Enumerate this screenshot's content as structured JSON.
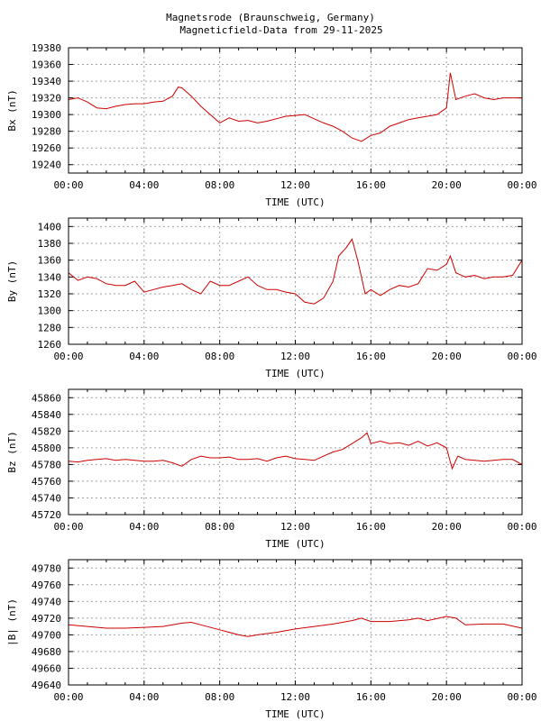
{
  "title_line1": "Magnetsrode (Braunschweig, Germany)",
  "title_line2": "Magneticfield-Data from 29-11-2025",
  "line_color": "#cc0000",
  "chart_data": [
    {
      "type": "line",
      "ylabel": "Bx (nT)",
      "xlabel": "TIME (UTC)",
      "xlim": [
        0,
        24
      ],
      "x_ticks": [
        "00:00",
        "04:00",
        "08:00",
        "12:00",
        "16:00",
        "20:00",
        "00:00"
      ],
      "ylim": [
        19230,
        19380
      ],
      "y_ticks": [
        19240,
        19260,
        19280,
        19300,
        19320,
        19340,
        19360,
        19380
      ],
      "grid": true,
      "x": [
        0,
        0.5,
        1,
        1.5,
        2,
        2.5,
        3,
        3.5,
        4,
        4.5,
        5,
        5.5,
        5.8,
        6,
        6.5,
        7,
        7.5,
        8,
        8.5,
        9,
        9.5,
        10,
        10.5,
        11,
        11.5,
        12,
        12.5,
        13,
        13.5,
        14,
        14.5,
        15,
        15.5,
        16,
        16.5,
        17,
        17.5,
        18,
        18.5,
        19,
        19.5,
        20,
        20.2,
        20.5,
        21,
        21.5,
        22,
        22.5,
        23,
        23.5,
        24
      ],
      "y": [
        19318,
        19320,
        19315,
        19308,
        19307,
        19310,
        19312,
        19313,
        19313,
        19315,
        19316,
        19322,
        19333,
        19332,
        19322,
        19310,
        19300,
        19290,
        19296,
        19292,
        19293,
        19290,
        19292,
        19295,
        19298,
        19299,
        19300,
        19295,
        19290,
        19286,
        19280,
        19272,
        19268,
        19275,
        19278,
        19286,
        19290,
        19294,
        19296,
        19298,
        19300,
        19308,
        19350,
        19318,
        19322,
        19325,
        19320,
        19318,
        19320,
        19320,
        19320
      ]
    },
    {
      "type": "line",
      "ylabel": "By (nT)",
      "xlabel": "TIME (UTC)",
      "xlim": [
        0,
        24
      ],
      "x_ticks": [
        "00:00",
        "04:00",
        "08:00",
        "12:00",
        "16:00",
        "20:00",
        "00:00"
      ],
      "ylim": [
        1260,
        1410
      ],
      "y_ticks": [
        1260,
        1280,
        1300,
        1320,
        1340,
        1360,
        1380,
        1400
      ],
      "grid": true,
      "x": [
        0,
        0.5,
        1,
        1.5,
        2,
        2.5,
        3,
        3.5,
        4,
        4.5,
        5,
        5.5,
        6,
        6.5,
        7,
        7.5,
        8,
        8.5,
        9,
        9.5,
        10,
        10.5,
        11,
        11.5,
        12,
        12.5,
        13,
        13.5,
        14,
        14.3,
        14.7,
        15,
        15.3,
        15.7,
        16,
        16.5,
        17,
        17.5,
        18,
        18.5,
        19,
        19.5,
        20,
        20.2,
        20.5,
        21,
        21.5,
        22,
        22.5,
        23,
        23.5,
        24
      ],
      "y": [
        1345,
        1336,
        1340,
        1338,
        1332,
        1330,
        1330,
        1335,
        1322,
        1325,
        1328,
        1330,
        1332,
        1325,
        1320,
        1335,
        1330,
        1330,
        1335,
        1340,
        1330,
        1325,
        1325,
        1322,
        1320,
        1310,
        1308,
        1315,
        1335,
        1365,
        1375,
        1385,
        1360,
        1320,
        1325,
        1318,
        1325,
        1330,
        1328,
        1332,
        1350,
        1348,
        1355,
        1365,
        1345,
        1340,
        1342,
        1338,
        1340,
        1340,
        1342,
        1360
      ]
    },
    {
      "type": "line",
      "ylabel": "Bz (nT)",
      "xlabel": "TIME (UTC)",
      "xlim": [
        0,
        24
      ],
      "x_ticks": [
        "00:00",
        "04:00",
        "08:00",
        "12:00",
        "16:00",
        "20:00",
        "00:00"
      ],
      "ylim": [
        45720,
        45870
      ],
      "y_ticks": [
        45720,
        45740,
        45760,
        45780,
        45800,
        45820,
        45840,
        45860
      ],
      "grid": true,
      "x": [
        0,
        0.5,
        1,
        1.5,
        2,
        2.5,
        3,
        3.5,
        4,
        4.5,
        5,
        5.5,
        6,
        6.5,
        7,
        7.5,
        8,
        8.5,
        9,
        9.5,
        10,
        10.5,
        11,
        11.5,
        12,
        12.5,
        13,
        13.5,
        14,
        14.5,
        15,
        15.5,
        15.8,
        16,
        16.5,
        17,
        17.5,
        18,
        18.5,
        19,
        19.5,
        20,
        20.3,
        20.6,
        21,
        21.5,
        22,
        22.5,
        23,
        23.5,
        24
      ],
      "y": [
        45784,
        45783,
        45785,
        45786,
        45787,
        45785,
        45786,
        45785,
        45784,
        45784,
        45785,
        45782,
        45778,
        45786,
        45790,
        45788,
        45788,
        45789,
        45786,
        45786,
        45787,
        45784,
        45788,
        45790,
        45787,
        45786,
        45785,
        45790,
        45795,
        45798,
        45805,
        45812,
        45818,
        45805,
        45808,
        45805,
        45806,
        45803,
        45808,
        45802,
        45806,
        45800,
        45775,
        45790,
        45786,
        45785,
        45784,
        45785,
        45786,
        45786,
        45780
      ]
    },
    {
      "type": "line",
      "ylabel": "|B| (nT)",
      "xlabel": "TIME (UTC)",
      "xlim": [
        0,
        24
      ],
      "x_ticks": [
        "00:00",
        "04:00",
        "08:00",
        "12:00",
        "16:00",
        "20:00",
        "00:00"
      ],
      "ylim": [
        49640,
        49790
      ],
      "y_ticks": [
        49640,
        49660,
        49680,
        49700,
        49720,
        49740,
        49760,
        49780
      ],
      "grid": true,
      "x": [
        0,
        1,
        2,
        3,
        4,
        5,
        6,
        6.5,
        7,
        8,
        9,
        9.5,
        10,
        11,
        12,
        13,
        14,
        15,
        15.5,
        16,
        17,
        18,
        18.5,
        19,
        20,
        20.5,
        21,
        22,
        23,
        24
      ],
      "y": [
        49712,
        49710,
        49708,
        49708,
        49709,
        49710,
        49714,
        49715,
        49712,
        49706,
        49700,
        49698,
        49700,
        49703,
        49707,
        49710,
        49713,
        49717,
        49720,
        49716,
        49716,
        49718,
        49720,
        49717,
        49722,
        49720,
        49712,
        49713,
        49713,
        49708
      ]
    }
  ]
}
